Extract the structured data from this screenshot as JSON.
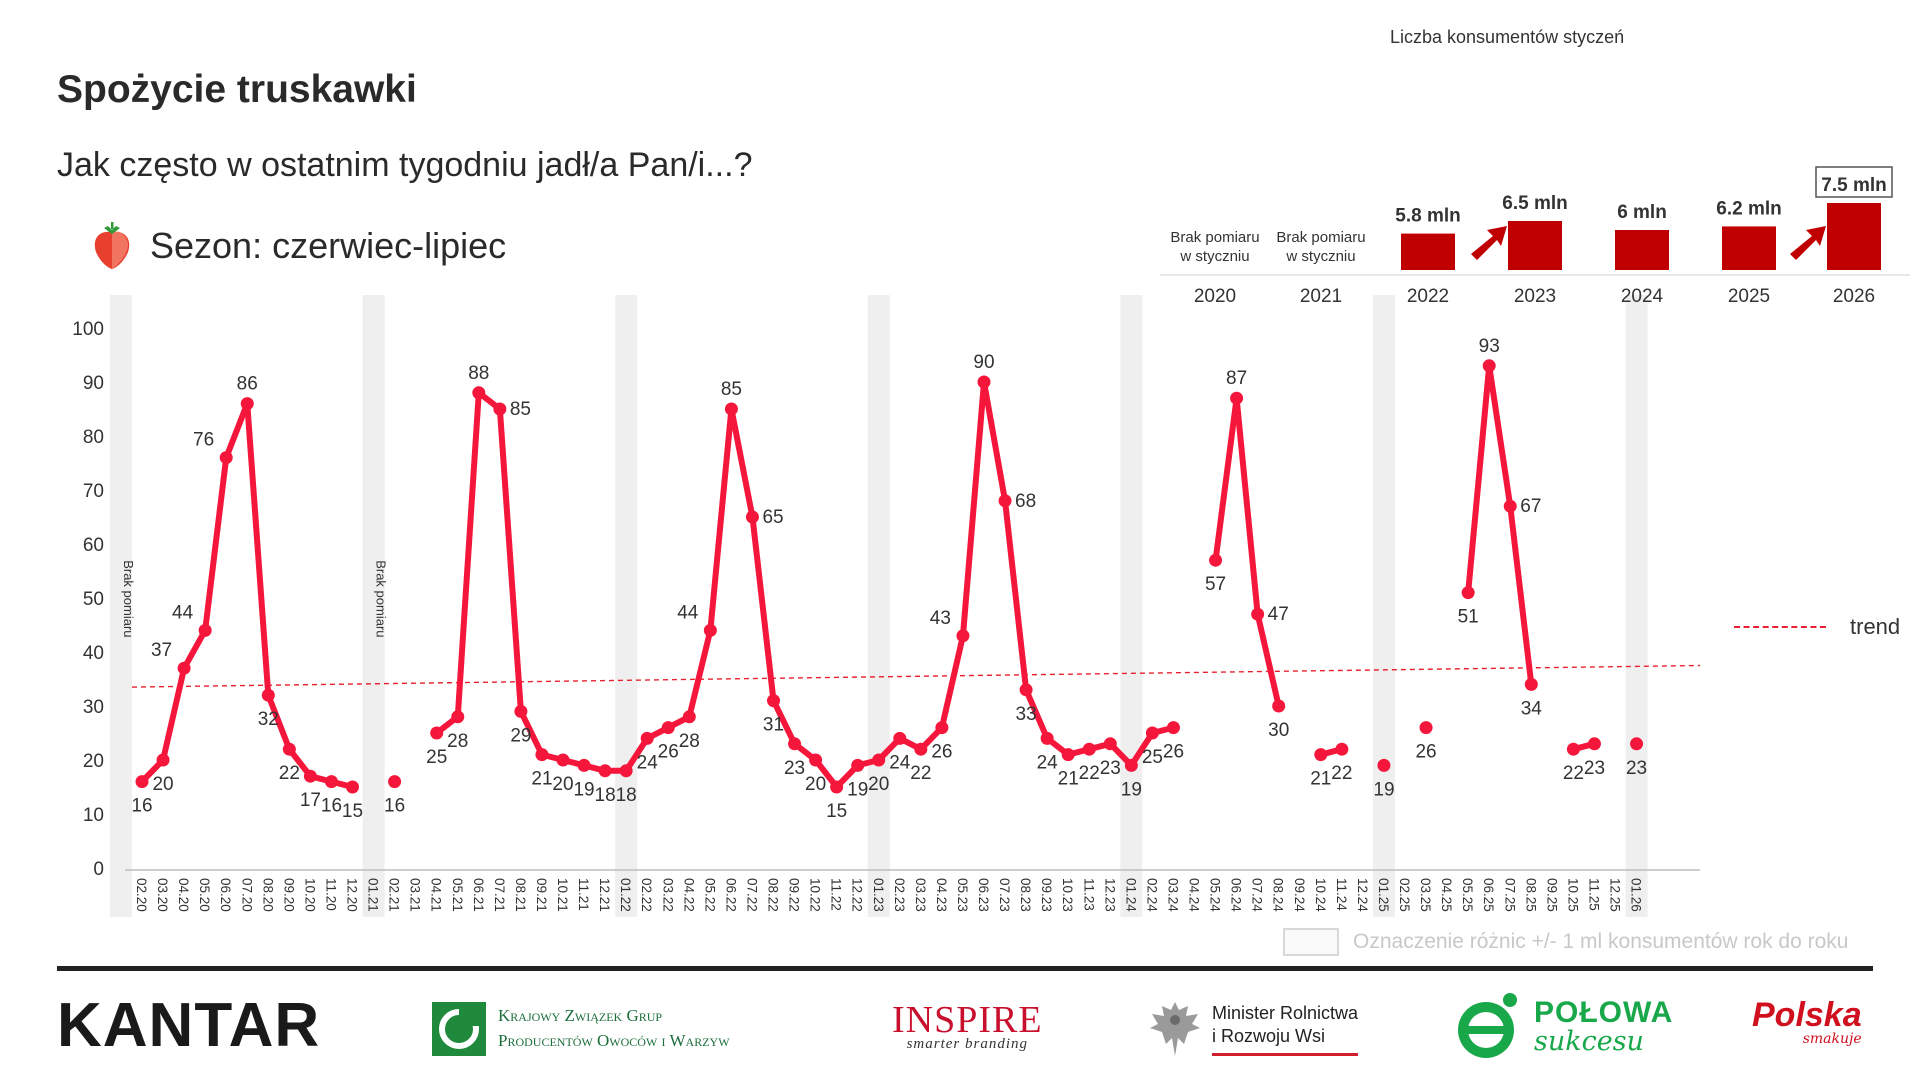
{
  "header": {
    "title": "Spożycie truskawki",
    "subtitle": "Jak często w ostatnim tygodniu jadł/a Pan/i...?",
    "season_label": "Sezon: czerwiec-lipiec",
    "season_icon": "strawberry-icon"
  },
  "colors": {
    "series": "#f5173b",
    "trend": "#e8202f",
    "bars": "#c00000",
    "shade": "#efefef"
  },
  "inset": {
    "title": "Liczba konsumentów styczeń",
    "years": [
      {
        "year": "2020",
        "value_label": "",
        "value": null,
        "note": "Brak pomiaru\nw styczniu"
      },
      {
        "year": "2021",
        "value_label": "",
        "value": null,
        "note": "Brak pomiaru\nw styczniu"
      },
      {
        "year": "2022",
        "value_label": "5.8 mln",
        "value": 5.8,
        "note": ""
      },
      {
        "year": "2023",
        "value_label": "6.5 mln",
        "value": 6.5,
        "note": ""
      },
      {
        "year": "2024",
        "value_label": "6 mln",
        "value": 6.0,
        "note": ""
      },
      {
        "year": "2025",
        "value_label": "6.2 mln",
        "value": 6.2,
        "note": ""
      },
      {
        "year": "2026",
        "value_label": "7.5 mln",
        "value": 7.5,
        "note": ""
      }
    ],
    "up_arrows_before": [
      "2023",
      "2026"
    ],
    "boxed_year": "2026"
  },
  "chart_data": {
    "type": "line",
    "x": [
      "02.20",
      "03.20",
      "04.20",
      "05.20",
      "06.20",
      "07.20",
      "08.20",
      "09.20",
      "10.20",
      "11.20",
      "12.20",
      "01.21",
      "02.21",
      "03.21",
      "04.21",
      "05.21",
      "06.21",
      "07.21",
      "08.21",
      "09.21",
      "10.21",
      "11.21",
      "12.21",
      "01.22",
      "02.22",
      "03.22",
      "04.22",
      "05.22",
      "06.22",
      "07.22",
      "08.22",
      "09.22",
      "10.22",
      "11.22",
      "12.22",
      "01.23",
      "02.23",
      "03.23",
      "04.23",
      "05.23",
      "06.23",
      "07.23",
      "08.23",
      "09.23",
      "10.23",
      "11.23",
      "12.23",
      "01.24",
      "02.24",
      "03.24",
      "04.24",
      "05.24",
      "06.24",
      "07.24",
      "08.24",
      "09.24",
      "10.24",
      "11.24",
      "12.24",
      "01.25",
      "02.25",
      "03.25",
      "04.25",
      "05.25",
      "06.25",
      "07.25",
      "08.25",
      "09.25",
      "10.25",
      "11.25",
      "12.25",
      "01.26"
    ],
    "series": [
      {
        "values": [
          16,
          20,
          37,
          44,
          76,
          86,
          32,
          22,
          17,
          16,
          15,
          null,
          16,
          null,
          25,
          28,
          88,
          85,
          29,
          21,
          20,
          19,
          18,
          18,
          24,
          26,
          28,
          44,
          85,
          65,
          31,
          23,
          20,
          15,
          19,
          20,
          24,
          22,
          26,
          43,
          90,
          68,
          33,
          24,
          21,
          22,
          23,
          19,
          25,
          26,
          null,
          57,
          87,
          47,
          30,
          null,
          21,
          22,
          null,
          19,
          null,
          26,
          null,
          51,
          93,
          67,
          34,
          null,
          22,
          23,
          null,
          23
        ]
      }
    ],
    "ylim": [
      0,
      100
    ],
    "yticks": [
      0,
      10,
      20,
      30,
      40,
      50,
      60,
      70,
      80,
      90,
      100
    ],
    "trend": {
      "start": 33.5,
      "end": 37.5
    },
    "shaded_months": [
      "01.20",
      "01.21",
      "01.22",
      "01.23",
      "01.24",
      "01.25",
      "01.26"
    ],
    "no_measure_label": "Brak pomiaru",
    "no_measure_at": [
      "01.20",
      "01.21"
    ],
    "legend": {
      "trend_label": "trend",
      "position": "right"
    },
    "footnote": "Oznaczenie różnic +/- 1 ml konsumentów rok do roku",
    "grid": false
  },
  "logos": {
    "kantar": "KANTAR",
    "kzgp_line1": "Krajowy Związek Grup",
    "kzgp_line2": "Producentów Owoców i Warzyw",
    "inspire": "INSPIRE",
    "inspire_tag": "smarter branding",
    "minister_line1": "Minister Rolnictwa",
    "minister_line2": "i Rozwoju Wsi",
    "polowa_line1": "POŁOWA",
    "polowa_line2": "sukcesu",
    "polska_line1": "Polska",
    "polska_line2": "smakuje"
  }
}
